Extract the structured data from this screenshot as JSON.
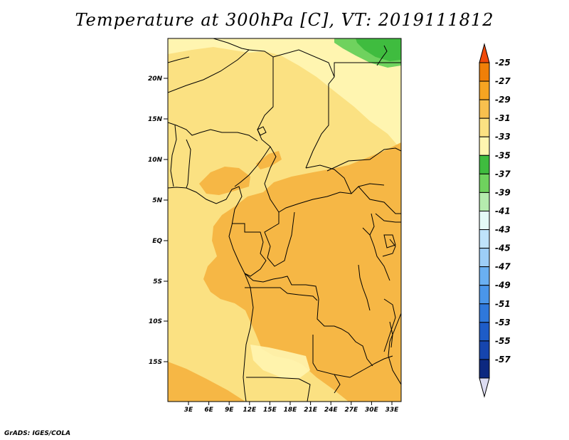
{
  "title": "Temperature at 300hPa [C], VT: 2019111812",
  "credit": "GrADS: IGES/COLA",
  "map": {
    "y_labels": [
      "20N",
      "15N",
      "10N",
      "5N",
      "EQ",
      "5S",
      "10S",
      "15S"
    ],
    "x_labels": [
      "3E",
      "6E",
      "9E",
      "12E",
      "15E",
      "18E",
      "21E",
      "24E",
      "27E",
      "30E",
      "33E"
    ],
    "field_colors": {
      "band_33_31": "#fbe182",
      "band_35_33": "#fff5b0",
      "band_31_29": "#f6b745",
      "band_39_37": "#6fd25e",
      "band_37_35": "#3fbc3f"
    }
  },
  "colorbar": {
    "labels": [
      "-25",
      "-27",
      "-29",
      "-31",
      "-33",
      "-35",
      "-37",
      "-39",
      "-41",
      "-43",
      "-45",
      "-47",
      "-49",
      "-51",
      "-53",
      "-55",
      "-57"
    ],
    "colors": [
      "#f04a0a",
      "#f07f08",
      "#f6a422",
      "#f8c04e",
      "#fbe182",
      "#fff5b0",
      "#3fbc3f",
      "#6fd25e",
      "#b5ecae",
      "#e4faf6",
      "#bfe3fb",
      "#9dcef7",
      "#6ab0f2",
      "#4a96ea",
      "#2f78db",
      "#1e5cc7",
      "#1645ae",
      "#0c2880",
      "#dcdcf2"
    ]
  }
}
